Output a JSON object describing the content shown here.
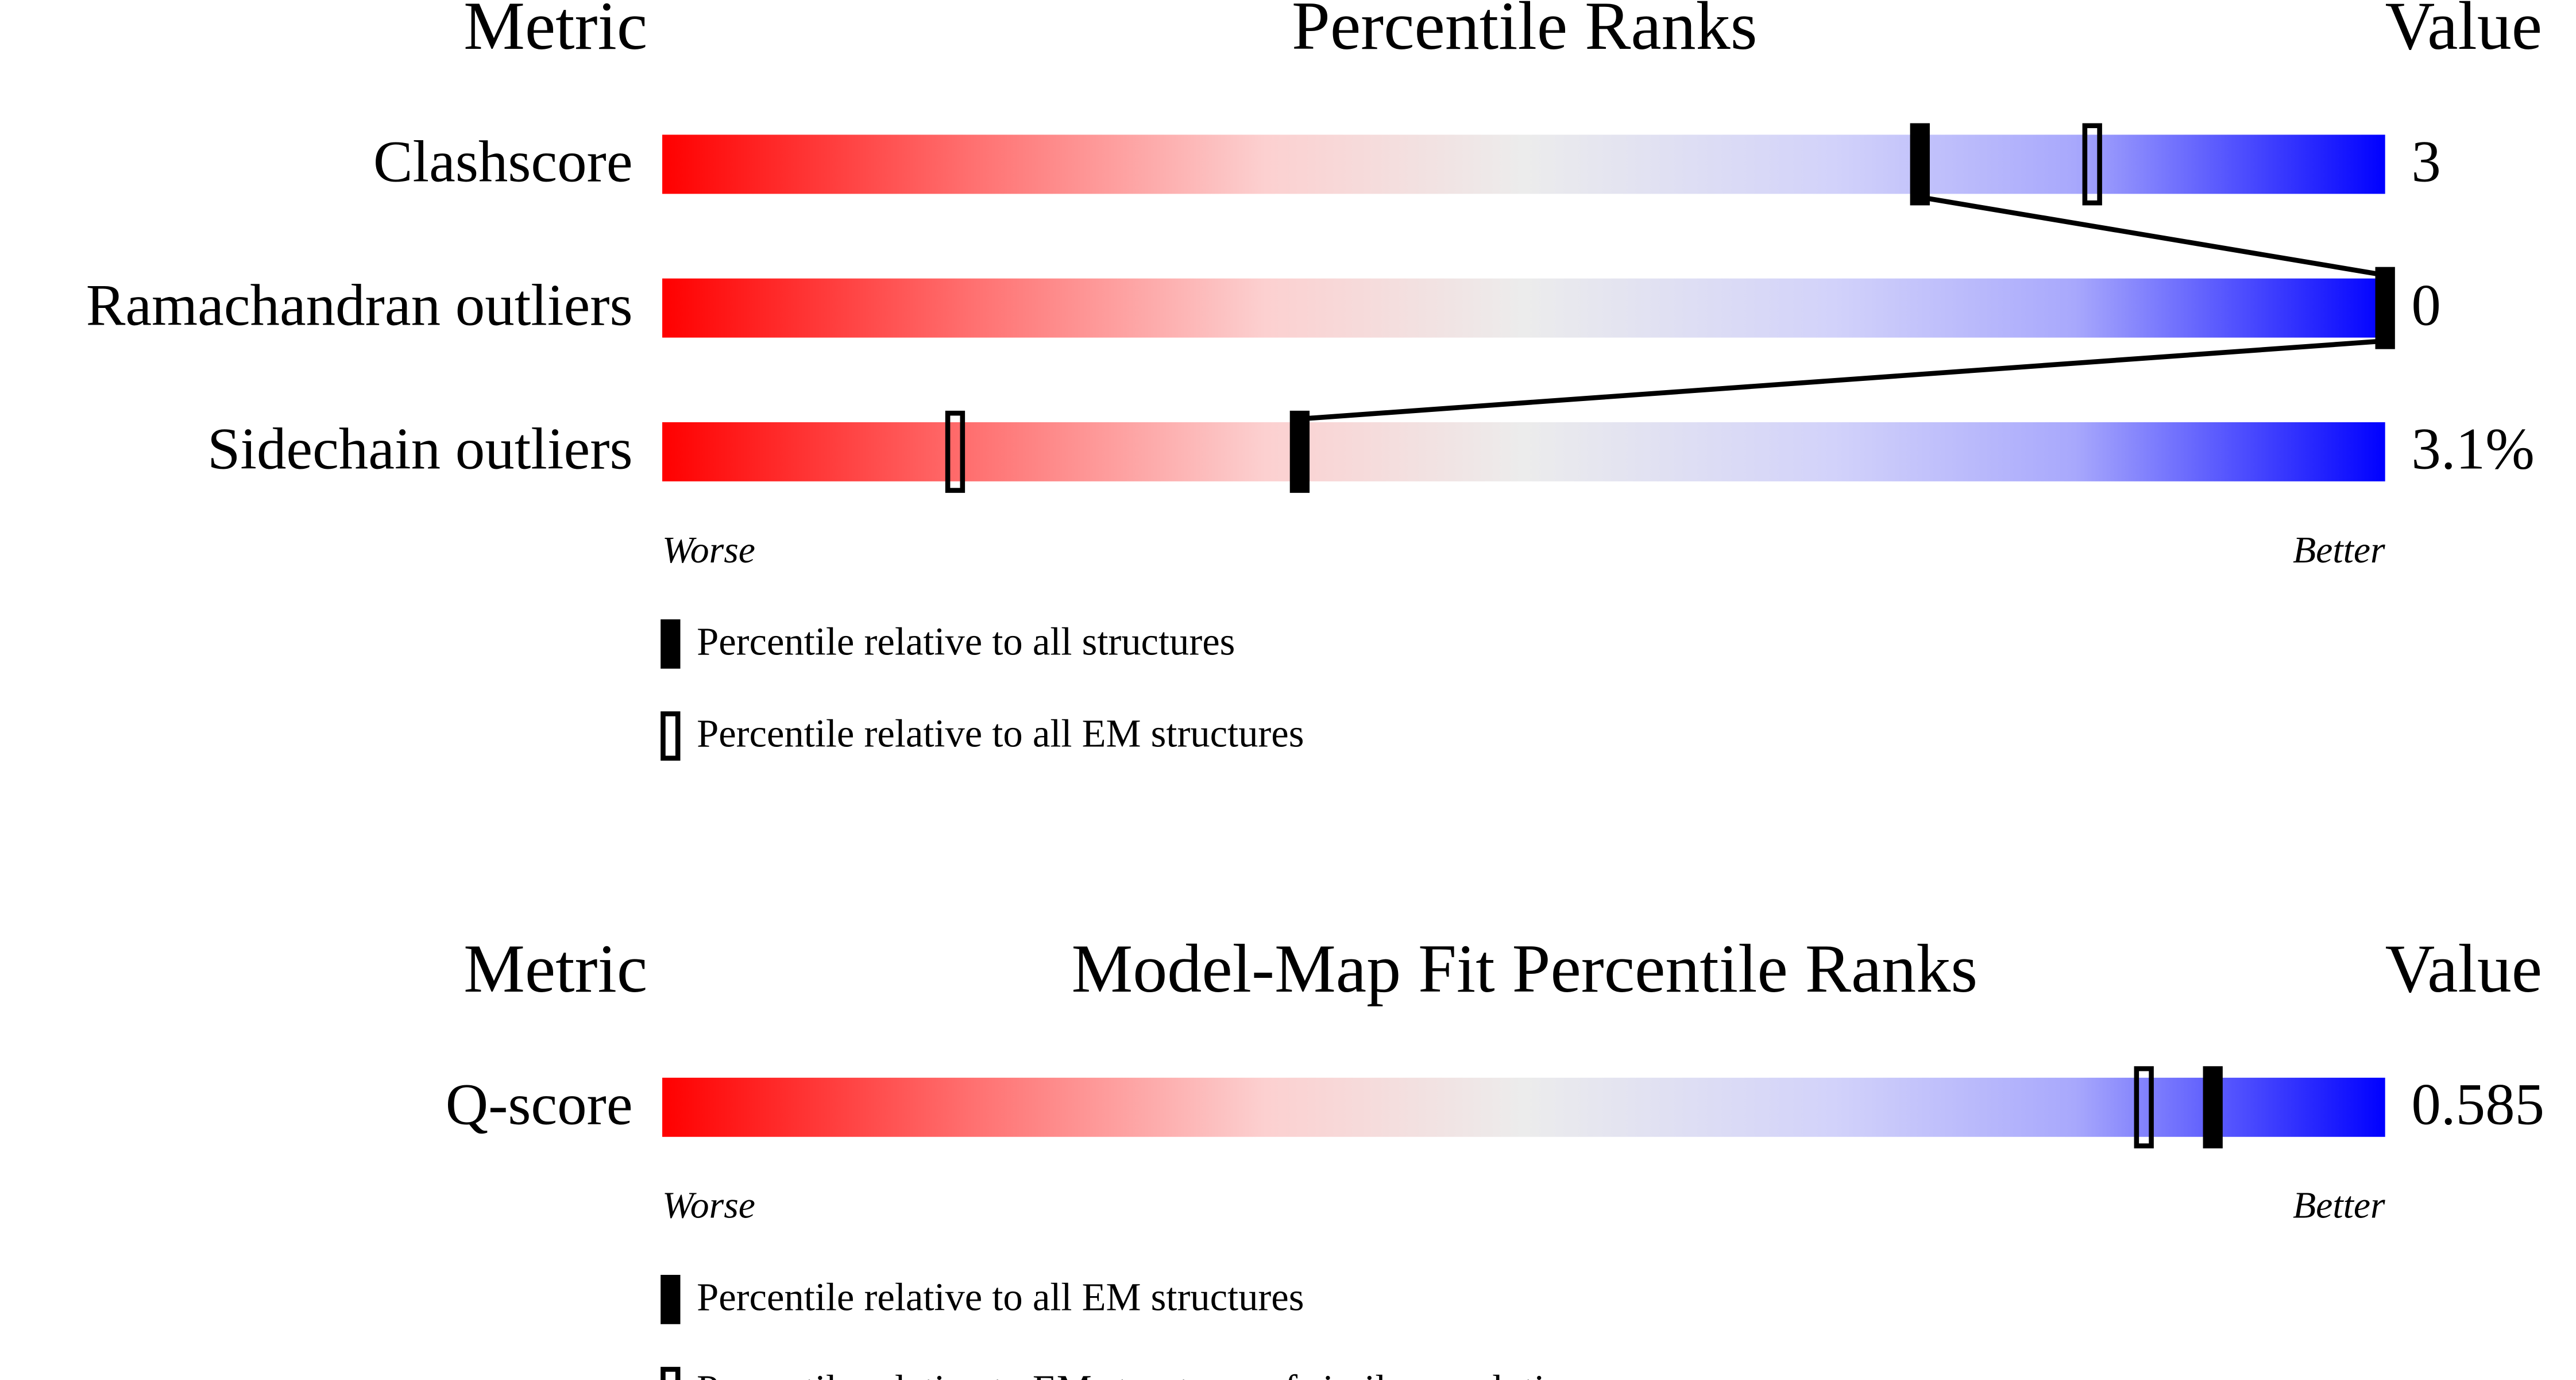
{
  "panels": [
    {
      "headers": {
        "metric": "Metric",
        "title": "Percentile Ranks",
        "value": "Value"
      },
      "percentile_range": [
        0,
        100
      ],
      "connect_filled": true,
      "rows": [
        {
          "metric": "Clashscore",
          "value": "3",
          "percentiles": {
            "filled": 73,
            "hollow": 83
          }
        },
        {
          "metric": "Ramachandran outliers",
          "value": "0",
          "percentiles": {
            "filled": 100
          }
        },
        {
          "metric": "Sidechain outliers",
          "value": "3.1%",
          "percentiles": {
            "filled": 37,
            "hollow": 17
          }
        }
      ],
      "scale": {
        "worse": "Worse",
        "better": "Better"
      },
      "legend": [
        {
          "marker": "filled",
          "label": "Percentile relative to all structures"
        },
        {
          "marker": "hollow",
          "label": "Percentile relative to all EM structures"
        }
      ]
    },
    {
      "headers": {
        "metric": "Metric",
        "title": "Model-Map Fit Percentile Ranks",
        "value": "Value"
      },
      "percentile_range": [
        0,
        100
      ],
      "connect_filled": false,
      "rows": [
        {
          "metric": "Q-score",
          "value": "0.585",
          "percentiles": {
            "filled": 90,
            "hollow": 86
          }
        }
      ],
      "scale": {
        "worse": "Worse",
        "better": "Better"
      },
      "legend": [
        {
          "marker": "filled",
          "label": "Percentile relative to all EM structures"
        },
        {
          "marker": "hollow",
          "label": "Percentile relative to EM structures of similar resolution"
        }
      ]
    }
  ]
}
